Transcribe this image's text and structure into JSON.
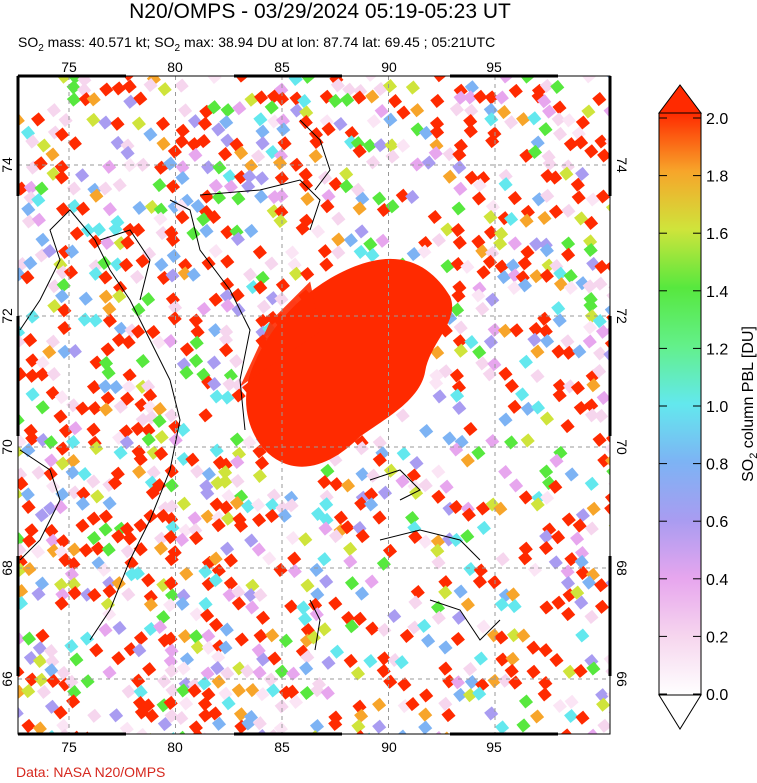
{
  "header": {
    "title": "N20/OMPS - 03/29/2024 05:19-05:23 UT",
    "subtitle_prefix": "SO",
    "subtitle_sub": "2",
    "subtitle_mid": " mass: 40.571 kt; SO",
    "subtitle_sub2": "2",
    "subtitle_rest": " max: 38.94 DU at lon: 87.74 lat: 69.45 ; 05:21UTC"
  },
  "map": {
    "lon_ticks": [
      "75",
      "80",
      "85",
      "90",
      "95"
    ],
    "lat_ticks": [
      "74",
      "72",
      "70",
      "68",
      "66"
    ],
    "plume_center": {
      "lon": 88.2,
      "lat": 71.0
    },
    "plume_value": 2.0
  },
  "colorbar": {
    "label_prefix": "SO",
    "label_sub": "2",
    "label_rest": " column PBL [DU]",
    "ticks": [
      "2.0",
      "1.8",
      "1.6",
      "1.4",
      "1.2",
      "1.0",
      "0.8",
      "0.6",
      "0.4",
      "0.2",
      "0.0"
    ],
    "min": 0.0,
    "max": 2.0
  },
  "footer": {
    "credit": "Data: NASA N20/OMPS"
  },
  "colors": {
    "high": "#ff2a00",
    "grid": "#999999"
  }
}
